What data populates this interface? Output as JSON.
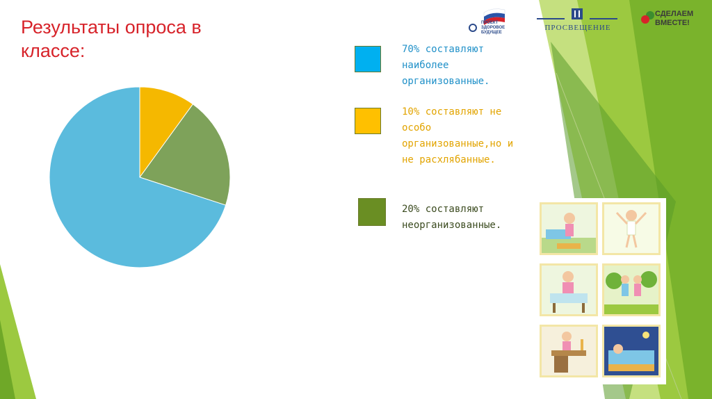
{
  "slide": {
    "title": "Результаты опроса в классе:"
  },
  "logos": {
    "project_lines": [
      "ПРОЕКТ",
      "ЗДОРОВОЕ",
      "БУДУЩЕЕ"
    ],
    "prosveshchenie": "ПРОСВЕЩЕНИЕ",
    "sdelaem_lines": [
      "СДЕЛАЕМ",
      "ВМЕСТЕ!"
    ]
  },
  "chart_data": {
    "type": "pie",
    "title": "",
    "slices": [
      {
        "label": "70% составляют наиболее организованные.",
        "value": 70,
        "color": "#5bbbdd"
      },
      {
        "label": "10% составляют не особо организованные,но и не расхлябанные.",
        "value": 10,
        "color": "#f5b800"
      },
      {
        "label": "20% составляют неорганизованные.",
        "value": 20,
        "color": "#7ea25a"
      }
    ],
    "legend_placement": "right"
  },
  "legend": [
    {
      "text": "70% составляют\nнаиболее\nорганизованные.",
      "swatch_color": "#00b0f0",
      "text_color": "#1f90c8"
    },
    {
      "text": "10% составляют не\nособо\nорганизованные,но и\nне расхлябанные.",
      "swatch_color": "#ffc000",
      "text_color": "#e2a400"
    },
    {
      "text": "20% составляют\nнеорганизованные.",
      "swatch_color": "#6a8e23",
      "text_color": "#3a4a1e"
    }
  ],
  "illustrations": [
    "girl-waking-up",
    "girl-exercising",
    "girl-eating-breakfast",
    "girls-walking",
    "girl-doing-homework",
    "girl-sleeping"
  ]
}
